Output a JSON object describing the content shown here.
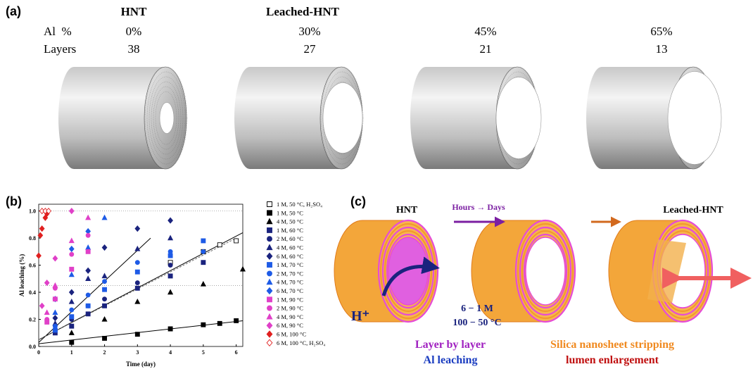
{
  "panel_a": {
    "label": "(a)",
    "hnt": "HNT",
    "leached": "Leached-HNT",
    "row_labels": [
      "Al  %",
      "Layers"
    ],
    "al": [
      "0%",
      "30%",
      "45%",
      "65%"
    ],
    "layers": [
      "38",
      "27",
      "21",
      "13"
    ]
  },
  "chart_data": {
    "type": "scatter",
    "panel_label": "(b)",
    "x_label": "Time (day)",
    "y_label": "Al leaching (%)",
    "xlim": [
      0,
      6.2
    ],
    "ylim": [
      0,
      1.05
    ],
    "xticks": [
      0,
      1,
      2,
      3,
      4,
      5,
      6
    ],
    "yticks": [
      {
        "value": 0,
        "label": "0.0"
      },
      0.2,
      0.4,
      0.6,
      0.8,
      {
        "value": 1,
        "label": "1.0"
      }
    ],
    "hlines": [
      1.0,
      0.45
    ],
    "fit_lines": [
      {
        "x": [
          0,
          6.2
        ],
        "y": [
          0.02,
          0.19
        ],
        "dashed": false
      },
      {
        "x": [
          0,
          3.4
        ],
        "y": [
          0.03,
          0.8
        ],
        "dashed": false
      },
      {
        "x": [
          0,
          6.2
        ],
        "y": [
          0.05,
          0.84
        ],
        "dashed": false
      },
      {
        "x": [
          0,
          6
        ],
        "y": [
          0.05,
          0.8
        ],
        "dashed": true
      }
    ],
    "series": [
      {
        "name": "1 M, 50 °C, H₂SO₄",
        "color": "#000000",
        "marker": "square",
        "filled": false,
        "x": [
          4,
          5,
          5.5,
          6
        ],
        "y": [
          0.62,
          0.7,
          0.75,
          0.78
        ]
      },
      {
        "name": "1 M, 50 °C",
        "color": "#000000",
        "marker": "square",
        "filled": true,
        "x": [
          1,
          2,
          3,
          4,
          5,
          5.5,
          6
        ],
        "y": [
          0.03,
          0.06,
          0.09,
          0.13,
          0.16,
          0.17,
          0.19
        ]
      },
      {
        "name": "4 M, 50 °C",
        "color": "#000000",
        "marker": "triangle",
        "filled": true,
        "x": [
          1,
          2,
          3,
          4,
          5,
          6.2
        ],
        "y": [
          0.1,
          0.2,
          0.33,
          0.4,
          0.46,
          0.57
        ]
      },
      {
        "name": "1 M, 60 °C",
        "color": "#1a237e",
        "marker": "square",
        "filled": true,
        "x": [
          0.5,
          1,
          1.5,
          2,
          3,
          4,
          5
        ],
        "y": [
          0.1,
          0.15,
          0.24,
          0.3,
          0.43,
          0.52,
          0.62
        ]
      },
      {
        "name": "2 M, 60 °C",
        "color": "#1a237e",
        "marker": "circle",
        "filled": true,
        "x": [
          0.5,
          1,
          1.5,
          2,
          3,
          4
        ],
        "y": [
          0.12,
          0.2,
          0.3,
          0.35,
          0.47,
          0.6
        ]
      },
      {
        "name": "4 M, 60 °C",
        "color": "#1a237e",
        "marker": "triangle",
        "filled": true,
        "x": [
          0.5,
          1,
          1.5,
          2,
          3,
          4
        ],
        "y": [
          0.17,
          0.33,
          0.5,
          0.52,
          0.72,
          0.8
        ]
      },
      {
        "name": "6 M, 60 °C",
        "color": "#1a237e",
        "marker": "diamond",
        "filled": true,
        "x": [
          0.5,
          1,
          1.5,
          2,
          3,
          4
        ],
        "y": [
          0.21,
          0.4,
          0.56,
          0.73,
          0.87,
          0.93
        ]
      },
      {
        "name": "1 M, 70 °C",
        "color": "#1e5be6",
        "marker": "square",
        "filled": true,
        "x": [
          0.5,
          1,
          1.5,
          2,
          3,
          4,
          5
        ],
        "y": [
          0.12,
          0.22,
          0.3,
          0.42,
          0.55,
          0.67,
          0.78
        ]
      },
      {
        "name": "2 M, 70 °C",
        "color": "#1e5be6",
        "marker": "circle",
        "filled": true,
        "x": [
          0.5,
          1,
          1.5,
          2,
          3,
          4,
          5
        ],
        "y": [
          0.15,
          0.27,
          0.38,
          0.48,
          0.62,
          0.7,
          0.7
        ]
      },
      {
        "name": "4 M, 70 °C",
        "color": "#1e5be6",
        "marker": "triangle",
        "filled": true,
        "x": [
          0.5,
          1,
          1.5,
          2
        ],
        "y": [
          0.25,
          0.53,
          0.73,
          0.95
        ]
      },
      {
        "name": "6 M, 70 °C",
        "color": "#1e5be6",
        "marker": "diamond",
        "filled": true,
        "x": [
          0.5,
          1,
          1.5
        ],
        "y": [
          0.35,
          0.72,
          0.85
        ]
      },
      {
        "name": "1 M, 90 °C",
        "color": "#e040c8",
        "marker": "square",
        "filled": true,
        "x": [
          0.25,
          0.5,
          1,
          1.5
        ],
        "y": [
          0.18,
          0.35,
          0.57,
          0.7
        ]
      },
      {
        "name": "2 M, 90 °C",
        "color": "#e040c8",
        "marker": "circle",
        "filled": true,
        "x": [
          0.25,
          0.5,
          1,
          1.5
        ],
        "y": [
          0.2,
          0.43,
          0.68,
          0.82
        ]
      },
      {
        "name": "4 M, 90 °C",
        "color": "#e040c8",
        "marker": "triangle",
        "filled": true,
        "x": [
          0.25,
          0.5,
          1,
          1.5
        ],
        "y": [
          0.25,
          0.45,
          0.78,
          0.95
        ]
      },
      {
        "name": "6 M, 90 °C",
        "color": "#e040c8",
        "marker": "diamond",
        "filled": true,
        "x": [
          0.1,
          0.25,
          0.5,
          1
        ],
        "y": [
          0.3,
          0.47,
          0.65,
          1.0
        ]
      },
      {
        "name": "6 M, 100 °C",
        "color": "#e02020",
        "marker": "diamond",
        "filled": true,
        "x": [
          0,
          0.05,
          0.1,
          0.2,
          0.25
        ],
        "y": [
          0.67,
          0.82,
          0.87,
          0.95,
          0.98
        ]
      },
      {
        "name": "6 M, 100 °C, H₂SO₄",
        "color": "#e02020",
        "marker": "diamond",
        "filled": false,
        "x": [
          0.1,
          0.2,
          0.3
        ],
        "y": [
          1.0,
          1.0,
          1.0
        ]
      }
    ]
  },
  "panel_c": {
    "label": "(c)",
    "hnt": "HNT",
    "arrow_text": "Hours → Days",
    "leached": "Leached-HNT",
    "ion": "H⁺",
    "conc": "6 − 1 M",
    "temp": "100 − 50 °C",
    "left_caption": [
      "Layer by layer",
      "Al leaching"
    ],
    "right_caption": [
      "Silica nanosheet stripping",
      "lumen enlargement"
    ]
  }
}
